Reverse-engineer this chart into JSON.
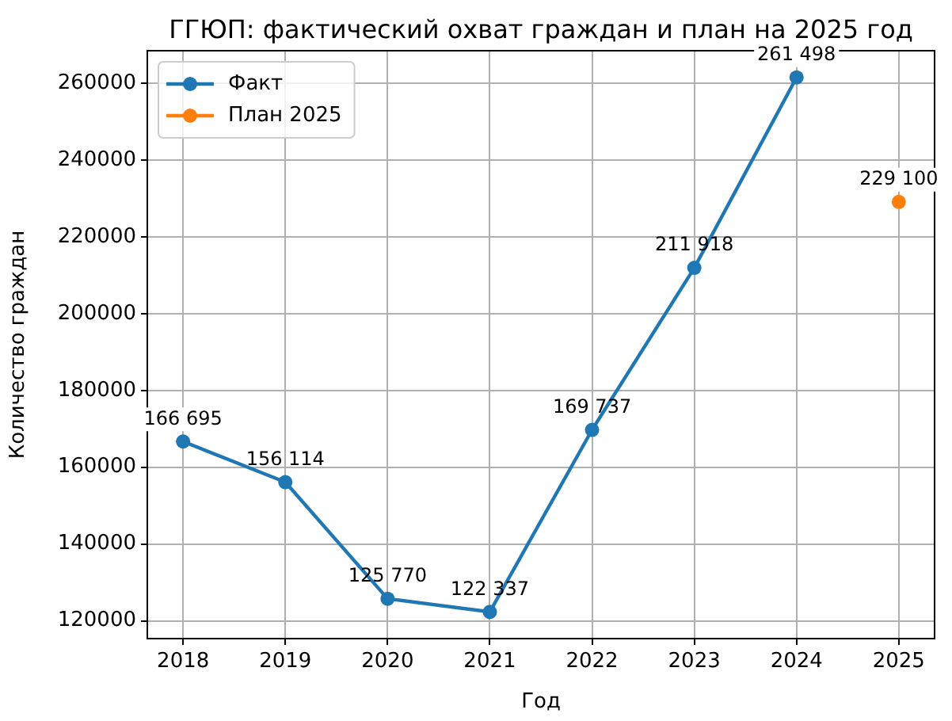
{
  "chart_data": {
    "type": "line",
    "title": "ГГЮП: фактический охват граждан и план на 2025 год",
    "xlabel": "Год",
    "ylabel": "Количество граждан",
    "x": [
      2018,
      2019,
      2020,
      2021,
      2022,
      2023,
      2024
    ],
    "series": [
      {
        "name": "Факт",
        "color": "#1f77b4",
        "values": [
          166695,
          156114,
          125770,
          122337,
          169737,
          211918,
          261498
        ],
        "value_labels": [
          "166 695",
          "156 114",
          "125 770",
          "122 337",
          "169 737",
          "211 918",
          "261 498"
        ]
      },
      {
        "name": "План 2025",
        "color": "#ff7f0e",
        "x": [
          2025
        ],
        "values": [
          229100
        ],
        "value_labels": [
          "229 100"
        ]
      }
    ],
    "xlim": [
      2017.65,
      2025.35
    ],
    "xticks": [
      2018,
      2019,
      2020,
      2021,
      2022,
      2023,
      2024,
      2025
    ],
    "ylim": [
      115379,
      268456
    ],
    "yticks": [
      120000,
      140000,
      160000,
      180000,
      200000,
      220000,
      240000,
      260000
    ],
    "grid": true,
    "legend": "top left",
    "marker": "circle",
    "line_style": "solid"
  }
}
